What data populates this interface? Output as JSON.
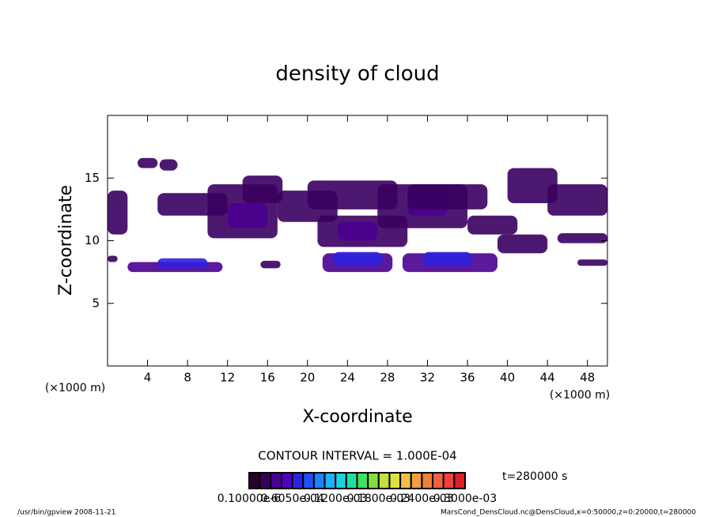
{
  "chart_data": {
    "type": "contour",
    "title": "density of cloud",
    "x_label": "X-coordinate",
    "y_label": "Z-coordinate",
    "x_unit_left": "(×1000 m)",
    "x_unit_right": "(×1000 m)",
    "xlim": [
      0,
      50
    ],
    "xticks": [
      4,
      8,
      12,
      16,
      20,
      24,
      28,
      32,
      36,
      40,
      44,
      48
    ],
    "ylim": [
      0,
      20
    ],
    "yticks": [
      5,
      10,
      15
    ],
    "contour_interval": "CONTOUR INTERVAL = 1.000E-04",
    "time_label": "t=280000 s",
    "colorbar_lim": [
      0,
      0.0003
    ],
    "colormap": [
      "#2a0030",
      "#3a0060",
      "#4a0090",
      "#5000c0",
      "#3020e0",
      "#2050ff",
      "#2080ff",
      "#20b0ff",
      "#20d0e0",
      "#20e0a0",
      "#40e060",
      "#80e040",
      "#c0e040",
      "#e0e040",
      "#f0c040",
      "#f0a040",
      "#f08040",
      "#f06040",
      "#f04040",
      "#e02020"
    ],
    "colorbar_labels": [
      "0.10000e-6",
      "0.6050e-04",
      "0.1200e-03",
      "0.1800e-03",
      "0.2400e-03",
      "0.3000e-03"
    ],
    "patches": [
      {
        "x": [
          3,
          5
        ],
        "z": [
          15.8,
          16.6
        ],
        "value": 2e-05
      },
      {
        "x": [
          5.2,
          7
        ],
        "z": [
          15.6,
          16.5
        ],
        "value": 2e-05
      },
      {
        "x": [
          0,
          2
        ],
        "z": [
          10.5,
          14
        ],
        "value": 2e-05
      },
      {
        "x": [
          5,
          12
        ],
        "z": [
          12,
          13.8
        ],
        "value": 2e-05
      },
      {
        "x": [
          10,
          17
        ],
        "z": [
          10.2,
          14.5
        ],
        "value": 2e-05
      },
      {
        "x": [
          12,
          16
        ],
        "z": [
          11,
          13
        ],
        "value": 4e-05
      },
      {
        "x": [
          13.5,
          17.5
        ],
        "z": [
          13,
          15.2
        ],
        "value": 2e-05
      },
      {
        "x": [
          17,
          23
        ],
        "z": [
          11.5,
          14
        ],
        "value": 2e-05
      },
      {
        "x": [
          20,
          29
        ],
        "z": [
          12.5,
          14.8
        ],
        "value": 2e-05
      },
      {
        "x": [
          21,
          30
        ],
        "z": [
          9.5,
          12
        ],
        "value": 2e-05
      },
      {
        "x": [
          23,
          27
        ],
        "z": [
          10,
          11.5
        ],
        "value": 4e-05
      },
      {
        "x": [
          27,
          36
        ],
        "z": [
          11,
          14.5
        ],
        "value": 2e-05
      },
      {
        "x": [
          30,
          34
        ],
        "z": [
          12,
          14
        ],
        "value": 4e-05
      },
      {
        "x": [
          30,
          38
        ],
        "z": [
          12.5,
          14.5
        ],
        "value": 2e-05
      },
      {
        "x": [
          36,
          41
        ],
        "z": [
          10.5,
          12
        ],
        "value": 2e-05
      },
      {
        "x": [
          39,
          44
        ],
        "z": [
          9,
          10.5
        ],
        "value": 2e-05
      },
      {
        "x": [
          40,
          45
        ],
        "z": [
          13,
          15.8
        ],
        "value": 2e-05
      },
      {
        "x": [
          44,
          50
        ],
        "z": [
          12,
          14.5
        ],
        "value": 2e-05
      },
      {
        "x": [
          45,
          50
        ],
        "z": [
          9.8,
          10.6
        ],
        "value": 2e-05
      },
      {
        "x": [
          47,
          50
        ],
        "z": [
          8,
          8.5
        ],
        "value": 2e-05
      },
      {
        "x": [
          15.3,
          17.3
        ],
        "z": [
          7.8,
          8.4
        ],
        "value": 2e-05
      },
      {
        "x": [
          0,
          1
        ],
        "z": [
          8.3,
          8.8
        ],
        "value": 2e-05
      },
      {
        "x": [
          2,
          11.5
        ],
        "z": [
          7.5,
          8.3
        ],
        "value": 3e-05
      },
      {
        "x": [
          5,
          10
        ],
        "z": [
          7.8,
          8.6
        ],
        "value": 6e-05
      },
      {
        "x": [
          21.5,
          28.5
        ],
        "z": [
          7.5,
          9
        ],
        "value": 3e-05
      },
      {
        "x": [
          22.5,
          27.5
        ],
        "z": [
          8,
          9.1
        ],
        "value": 6e-05
      },
      {
        "x": [
          29.5,
          39
        ],
        "z": [
          7.5,
          9
        ],
        "value": 3e-05
      },
      {
        "x": [
          31.5,
          36.5
        ],
        "z": [
          8,
          9.1
        ],
        "value": 6e-05
      }
    ]
  },
  "footer": {
    "left": "/usr/bin/gpview   2008-11-21",
    "right": "MarsCond_DensCloud.nc@DensCloud,x=0:50000,z=0:20000,t=280000"
  }
}
